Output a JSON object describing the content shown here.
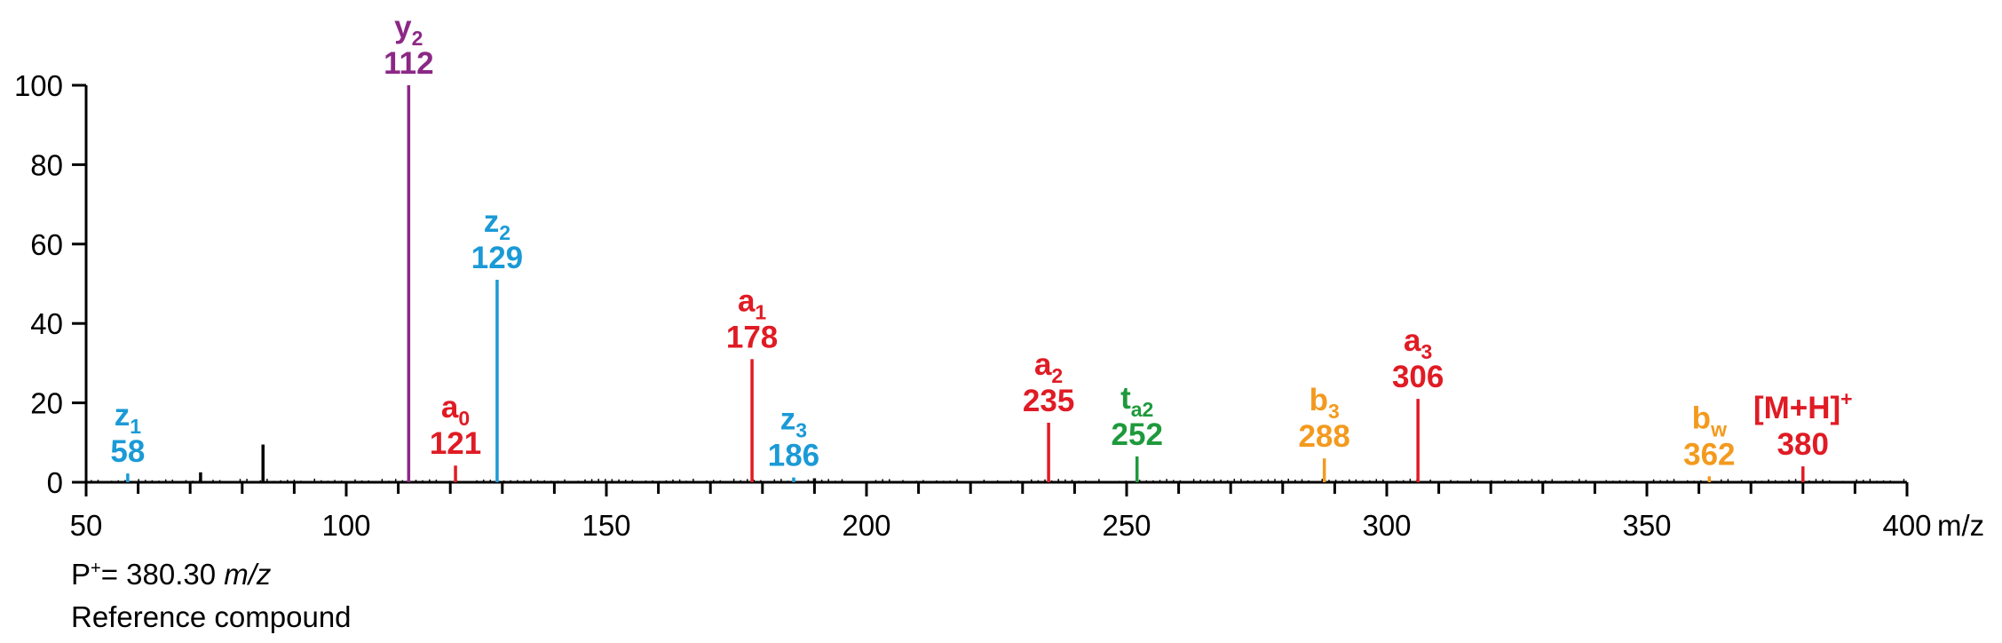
{
  "chart_data": {
    "type": "bar",
    "title": "",
    "xlabel": "m/z",
    "ylabel": "",
    "xlim": [
      50,
      400
    ],
    "ylim": [
      0,
      100
    ],
    "x_ticks": [
      "50",
      "100",
      "150",
      "200",
      "250",
      "300",
      "350",
      "400"
    ],
    "y_ticks": [
      "0",
      "20",
      "40",
      "60",
      "80",
      "100"
    ],
    "grid": false,
    "legend": "none",
    "peaks": [
      {
        "ion": "z",
        "sub": "1",
        "sup": "",
        "mz": 58,
        "label": "58",
        "intensity": 2.2,
        "color": "#1a9ad6"
      },
      {
        "ion": "y",
        "sub": "2",
        "sup": "",
        "mz": 112,
        "label": "112",
        "intensity": 100,
        "color": "#8b2886"
      },
      {
        "ion": "a",
        "sub": "0",
        "sup": "",
        "mz": 121,
        "label": "121",
        "intensity": 4.2,
        "color": "#e01b24"
      },
      {
        "ion": "z",
        "sub": "2",
        "sup": "",
        "mz": 129,
        "label": "129",
        "intensity": 51,
        "color": "#1a9ad6"
      },
      {
        "ion": "a",
        "sub": "1",
        "sup": "",
        "mz": 178,
        "label": "178",
        "intensity": 31,
        "color": "#e01b24"
      },
      {
        "ion": "z",
        "sub": "3",
        "sup": "",
        "mz": 186,
        "label": "186",
        "intensity": 1.2,
        "color": "#1a9ad6"
      },
      {
        "ion": "a",
        "sub": "2",
        "sup": "",
        "mz": 235,
        "label": "235",
        "intensity": 15,
        "color": "#e01b24"
      },
      {
        "ion": "t",
        "sub": "a2",
        "sup": "",
        "mz": 252,
        "label": "252",
        "intensity": 6.5,
        "color": "#1e9a3c"
      },
      {
        "ion": "b",
        "sub": "3",
        "sup": "",
        "mz": 288,
        "label": "288",
        "intensity": 6,
        "color": "#f39a1e"
      },
      {
        "ion": "a",
        "sub": "3",
        "sup": "",
        "mz": 306,
        "label": "306",
        "intensity": 21,
        "color": "#e01b24"
      },
      {
        "ion": "b",
        "sub": "w",
        "sup": "",
        "mz": 362,
        "label": "362",
        "intensity": 1.5,
        "color": "#f39a1e"
      },
      {
        "ion": "[M+H]",
        "sub": "",
        "sup": "+",
        "mz": 380,
        "label": "380",
        "intensity": 4,
        "color": "#e01b24"
      }
    ],
    "unlabeled_peaks": [
      {
        "mz": 72,
        "intensity": 2.5,
        "color": "#000000"
      },
      {
        "mz": 84,
        "intensity": 9.5,
        "color": "#000000"
      },
      {
        "mz": 190,
        "intensity": 1,
        "color": "#000000"
      }
    ]
  },
  "footer": {
    "precursor_prefix": "P",
    "precursor_sup": "+",
    "precursor_text": "= 380.30 ",
    "precursor_unit": "m/z",
    "compound": "Reference compound"
  }
}
